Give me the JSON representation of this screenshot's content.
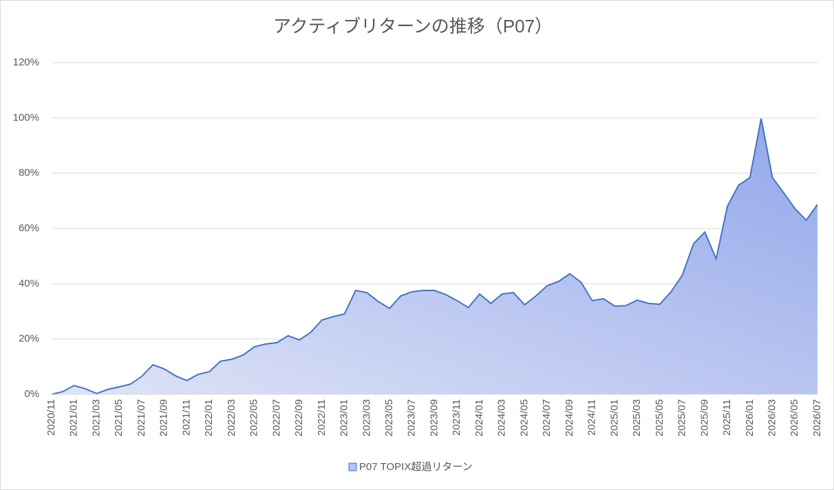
{
  "chart_data": {
    "type": "area",
    "title": "アクティブリターンの推移（P07）",
    "categories": [
      "2020/11",
      null,
      "2021/01",
      null,
      "2021/03",
      null,
      "2021/05",
      null,
      "2021/07",
      null,
      "2021/09",
      null,
      "2021/11",
      null,
      "2022/01",
      null,
      "2022/03",
      null,
      "2022/05",
      null,
      "2022/07",
      null,
      "2022/09",
      null,
      "2022/11",
      null,
      "2023/01",
      null,
      "2023/03",
      null,
      "2023/05",
      null,
      "2023/07",
      null,
      "2023/09",
      null,
      "2023/11",
      null,
      "2024/01",
      null,
      "2024/03",
      null,
      "2024/05",
      null,
      "2024/07",
      null,
      "2024/09",
      null,
      "2024/11",
      null,
      "2025/01",
      null,
      "2025/03",
      null,
      "2025/05",
      null,
      "2025/07",
      null,
      "2025/09",
      null,
      "2025/11",
      null,
      "2026/01",
      null,
      "2026/03",
      null,
      "2026/05",
      null,
      "2026/07"
    ],
    "series": [
      {
        "name": "P07 TOPIX超過リターン",
        "color": "#4472c4",
        "values": [
          0,
          1,
          3.2,
          2,
          0.3,
          1.8,
          2.7,
          3.7,
          6.5,
          10.7,
          9.2,
          6.7,
          5,
          7.2,
          8.2,
          12,
          12.7,
          14.2,
          17.2,
          18.2,
          18.7,
          21.2,
          19.7,
          22.4,
          26.9,
          28.1,
          29.1,
          37.6,
          36.8,
          33.6,
          31.1,
          35.6,
          37.1,
          37.6,
          37.6,
          36.1,
          33.9,
          31.4,
          36.3,
          32.9,
          36.3,
          36.8,
          32.4,
          35.6,
          39.3,
          40.8,
          43.6,
          40.6,
          33.9,
          34.6,
          31.9,
          32.1,
          34.1,
          32.9,
          32.6,
          37.1,
          43.1,
          54.5,
          58.7,
          49,
          68,
          75.7,
          78.4,
          99.8,
          78.4,
          72.9,
          67.2,
          63,
          68.7
        ]
      }
    ],
    "ylim": [
      0,
      120
    ],
    "yticks": [
      {
        "value": 0,
        "label": "0%"
      },
      {
        "value": 20,
        "label": "20%"
      },
      {
        "value": 40,
        "label": "40%"
      },
      {
        "value": 60,
        "label": "60%"
      },
      {
        "value": 80,
        "label": "80%"
      },
      {
        "value": 100,
        "label": "100%"
      },
      {
        "value": 120,
        "label": "120%"
      }
    ],
    "grid": true,
    "legend": "bottom"
  }
}
